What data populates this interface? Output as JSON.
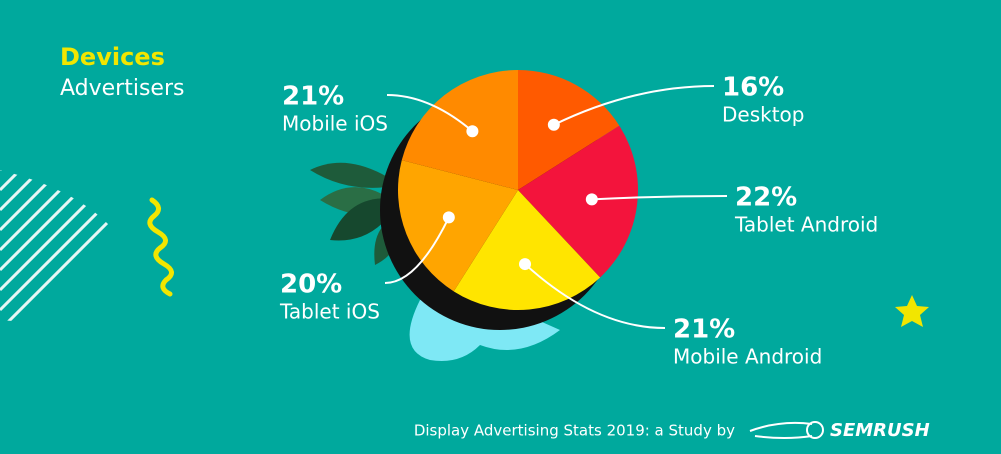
{
  "chart_data": {
    "type": "pie",
    "title": "Devices",
    "subtitle": "Advertisers",
    "categories": [
      "Desktop",
      "Tablet Android",
      "Mobile Android",
      "Tablet iOS",
      "Mobile iOS"
    ],
    "values": [
      16,
      22,
      21,
      20,
      21
    ],
    "value_labels": [
      "16%",
      "22%",
      "21%",
      "20%",
      "21%"
    ],
    "colors": [
      "#ff5a00",
      "#f3143c",
      "#ffe500",
      "#ffa500",
      "#ff8a00"
    ],
    "footer": "Display Advertising Stats 2019: a Study by",
    "logo": "SEMRUSH"
  }
}
